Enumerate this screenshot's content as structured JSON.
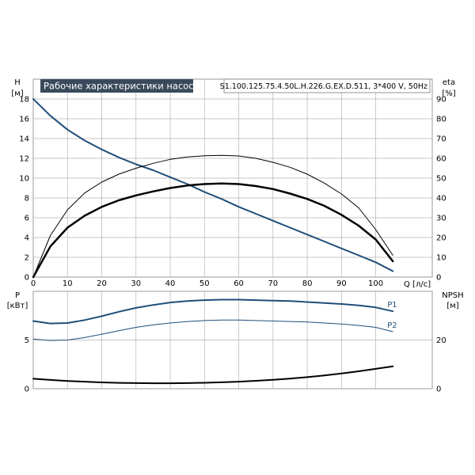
{
  "chart_data": [
    {
      "type": "line",
      "panel": "head-efficiency",
      "title": "Рабочие характеристики насоса",
      "model": "S1.100.125.75.4.50L.H.226.G.EX.D.511, 3*400 V, 50Hz",
      "xlabel": "Q [л/с]",
      "x_ticks": [
        "0",
        "10",
        "20",
        "30",
        "40",
        "50",
        "60",
        "70",
        "80",
        "90",
        "100"
      ],
      "xlim": [
        0,
        108
      ],
      "y_left": {
        "label": "H",
        "unit": "[м]",
        "ylim": [
          0,
          20
        ],
        "ticks": [
          "0",
          "2",
          "4",
          "6",
          "8",
          "10",
          "12",
          "14",
          "16",
          "18"
        ]
      },
      "y_right": {
        "label": "eta",
        "unit": "[%]",
        "ylim": [
          0,
          100
        ],
        "ticks": [
          "0",
          "10",
          "20",
          "30",
          "40",
          "50",
          "60",
          "70",
          "80",
          "90"
        ]
      },
      "grid": true,
      "series": [
        {
          "axis": "left",
          "color": "#1f4e79",
          "width": 2,
          "x": [
            0,
            5,
            10,
            15,
            20,
            25,
            30,
            35,
            40,
            45,
            50,
            55,
            60,
            65,
            70,
            75,
            80,
            85,
            90,
            95,
            100,
            105
          ],
          "y": [
            18.0,
            16.3,
            14.9,
            13.8,
            12.9,
            12.1,
            11.4,
            10.8,
            10.1,
            9.4,
            8.6,
            7.9,
            7.1,
            6.4,
            5.7,
            5.0,
            4.3,
            3.6,
            2.9,
            2.2,
            1.5,
            0.6
          ]
        },
        {
          "axis": "right",
          "color": "#000000",
          "width": 1,
          "x": [
            0,
            5,
            10,
            15,
            20,
            25,
            30,
            35,
            40,
            45,
            50,
            55,
            60,
            65,
            70,
            75,
            80,
            85,
            90,
            95,
            100,
            105
          ],
          "y": [
            0,
            21,
            34,
            42.5,
            48,
            52,
            55,
            57.5,
            59.5,
            60.7,
            61.3,
            61.5,
            61.2,
            60,
            58,
            55.5,
            52,
            47.5,
            42,
            35,
            24,
            11
          ]
        },
        {
          "axis": "right",
          "color": "#000000",
          "width": 2.5,
          "x": [
            0,
            5,
            10,
            15,
            20,
            25,
            30,
            35,
            40,
            45,
            50,
            55,
            60,
            65,
            70,
            75,
            80,
            85,
            90,
            95,
            100,
            105
          ],
          "y": [
            0,
            15.5,
            25,
            31,
            35.5,
            38.8,
            41.3,
            43.3,
            45,
            46.3,
            47,
            47.3,
            47,
            46,
            44.5,
            42.2,
            39.5,
            36,
            31.5,
            26,
            19,
            8
          ]
        }
      ]
    },
    {
      "type": "line",
      "panel": "power-npsh",
      "x_ticks": [
        "0",
        "10",
        "20",
        "30",
        "40",
        "50",
        "60",
        "70",
        "80",
        "90",
        "100"
      ],
      "xlim": [
        0,
        108
      ],
      "y_left": {
        "label": "P",
        "unit": "[кВт]",
        "ylim": [
          0,
          10
        ],
        "ticks": [
          "0",
          "5"
        ]
      },
      "y_right": {
        "label": "NPSH",
        "unit": "[м]",
        "ylim": [
          0,
          40
        ],
        "ticks": [
          "0",
          "20"
        ]
      },
      "grid": true,
      "series": [
        {
          "name": "P1",
          "axis": "left",
          "color": "#1f4e79",
          "width": 2,
          "x": [
            0,
            5,
            10,
            15,
            20,
            25,
            30,
            35,
            40,
            45,
            50,
            55,
            60,
            65,
            70,
            75,
            80,
            85,
            90,
            95,
            100,
            105
          ],
          "y": [
            6.95,
            6.7,
            6.75,
            7.05,
            7.45,
            7.9,
            8.3,
            8.6,
            8.85,
            9.0,
            9.1,
            9.15,
            9.15,
            9.1,
            9.05,
            9.0,
            8.9,
            8.8,
            8.7,
            8.55,
            8.35,
            7.95
          ]
        },
        {
          "name": "P2",
          "axis": "left",
          "color": "#1f4e79",
          "width": 1,
          "x": [
            0,
            5,
            10,
            15,
            20,
            25,
            30,
            35,
            40,
            45,
            50,
            55,
            60,
            65,
            70,
            75,
            80,
            85,
            90,
            95,
            100,
            105
          ],
          "y": [
            5.1,
            4.95,
            5.0,
            5.25,
            5.6,
            5.95,
            6.3,
            6.55,
            6.75,
            6.9,
            7.0,
            7.05,
            7.05,
            7.0,
            6.95,
            6.9,
            6.85,
            6.75,
            6.65,
            6.5,
            6.3,
            5.85
          ]
        },
        {
          "axis": "right",
          "color": "#000000",
          "width": 2,
          "x": [
            0,
            5,
            10,
            15,
            20,
            25,
            30,
            35,
            40,
            45,
            50,
            55,
            60,
            65,
            70,
            75,
            80,
            85,
            90,
            95,
            100,
            105
          ],
          "y": [
            4.1,
            3.6,
            3.2,
            2.9,
            2.6,
            2.4,
            2.3,
            2.25,
            2.25,
            2.3,
            2.45,
            2.65,
            2.9,
            3.25,
            3.65,
            4.15,
            4.75,
            5.45,
            6.25,
            7.15,
            8.15,
            9.2
          ]
        }
      ]
    }
  ]
}
